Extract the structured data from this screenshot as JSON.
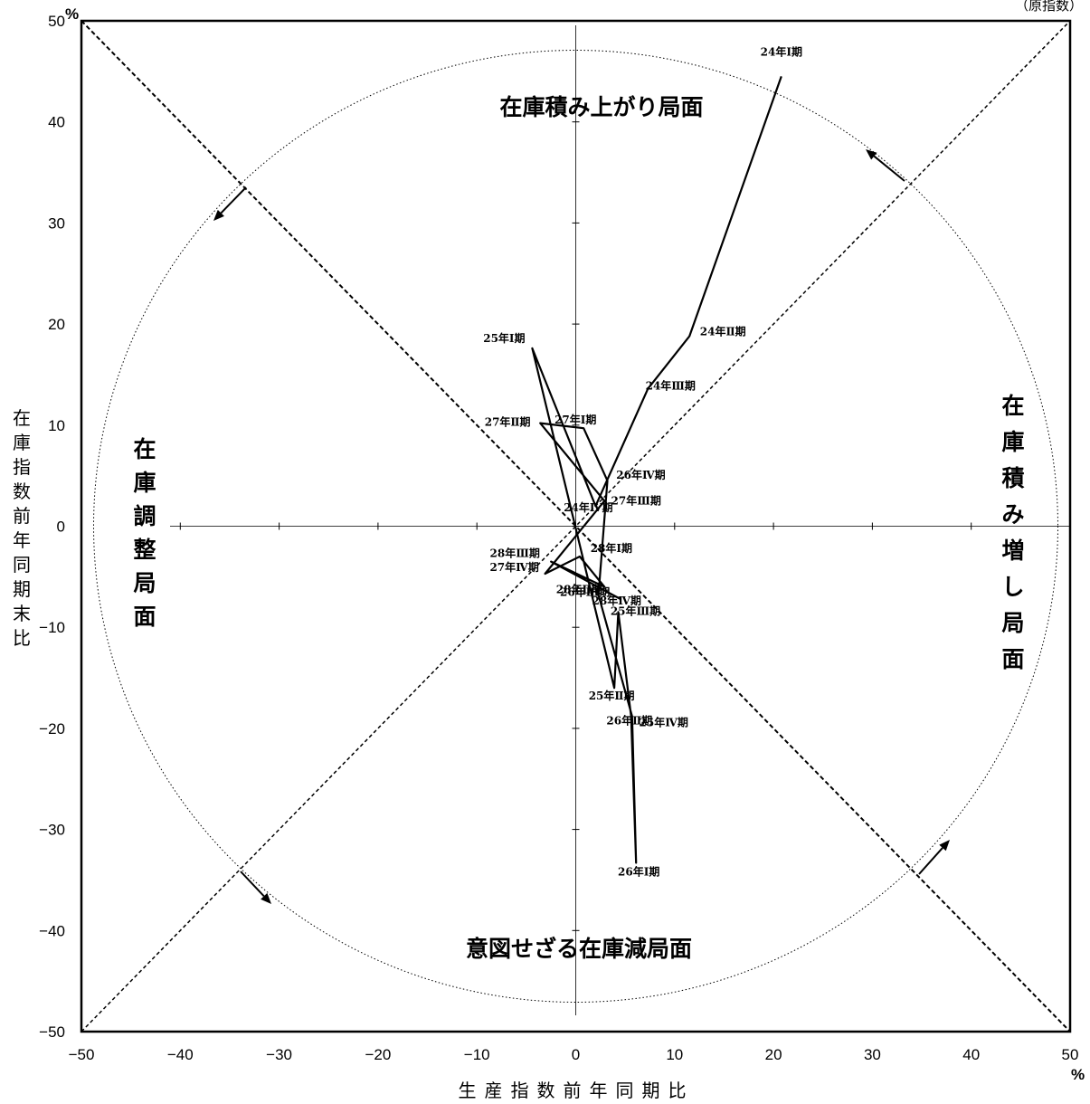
{
  "note": "（原指数）",
  "chart_data": {
    "type": "line",
    "xlabel": "生産指数前年同期比",
    "ylabel": "在庫指数前年同期末比",
    "xunit": "%",
    "yunit": "%",
    "xlim": [
      -50,
      50
    ],
    "ylim": [
      -50,
      50
    ],
    "xticks": [
      -50,
      -40,
      -30,
      -20,
      -10,
      0,
      10,
      20,
      30,
      40,
      50
    ],
    "yticks": [
      -50,
      -40,
      -30,
      -20,
      -10,
      0,
      10,
      20,
      30,
      40,
      50
    ],
    "series": [
      {
        "points": [
          {
            "label": "24年Ⅰ期",
            "x": 20.8,
            "y": 44.5
          },
          {
            "label": "24年Ⅱ期",
            "x": 11.5,
            "y": 18.8
          },
          {
            "label": "24年Ⅲ期",
            "x": 7.3,
            "y": 13.6
          },
          {
            "label": "24年Ⅳ期",
            "x": 2.0,
            "y": 2.0
          },
          {
            "label": "25年Ⅰ期",
            "x": -4.4,
            "y": 17.6
          },
          {
            "label": "25年Ⅱ期",
            "x": 3.9,
            "y": -16.0
          },
          {
            "label": "25年Ⅲ期",
            "x": 4.3,
            "y": -8.5
          },
          {
            "label": "25年Ⅳ期",
            "x": 5.6,
            "y": -18.8
          },
          {
            "label": "26年Ⅰ期",
            "x": 6.1,
            "y": -33.3
          },
          {
            "label": "26年Ⅱ期",
            "x": 5.7,
            "y": -18.8
          },
          {
            "label": "26年Ⅲ期",
            "x": 2.3,
            "y": -6.8
          },
          {
            "label": "26年Ⅳ期",
            "x": 3.2,
            "y": 4.5
          },
          {
            "label": "27年Ⅰ期",
            "x": 0.8,
            "y": 9.7
          },
          {
            "label": "27年Ⅱ期",
            "x": -3.6,
            "y": 10.2
          },
          {
            "label": "27年Ⅲ期",
            "x": 2.9,
            "y": 2.5
          },
          {
            "label": "27年Ⅳ期",
            "x": -3.1,
            "y": -4.7
          },
          {
            "label": "28年Ⅰ期",
            "x": 0.4,
            "y": -3.0
          },
          {
            "label": "28年Ⅱ期",
            "x": 2.9,
            "y": -6.0
          },
          {
            "label": "28年Ⅲ期",
            "x": -2.5,
            "y": -3.5
          },
          {
            "label": "28年Ⅳ期",
            "x": 4.5,
            "y": -7.2
          }
        ]
      }
    ],
    "reference_lines": [
      "y=x",
      "y=-x",
      "x=0",
      "y=0",
      "circle"
    ],
    "phases": {
      "top": "在庫積み上がり局面",
      "right": "在庫積み増し局面",
      "bottom": "意図せざる在庫減局面",
      "left": "在庫調整局面"
    }
  }
}
